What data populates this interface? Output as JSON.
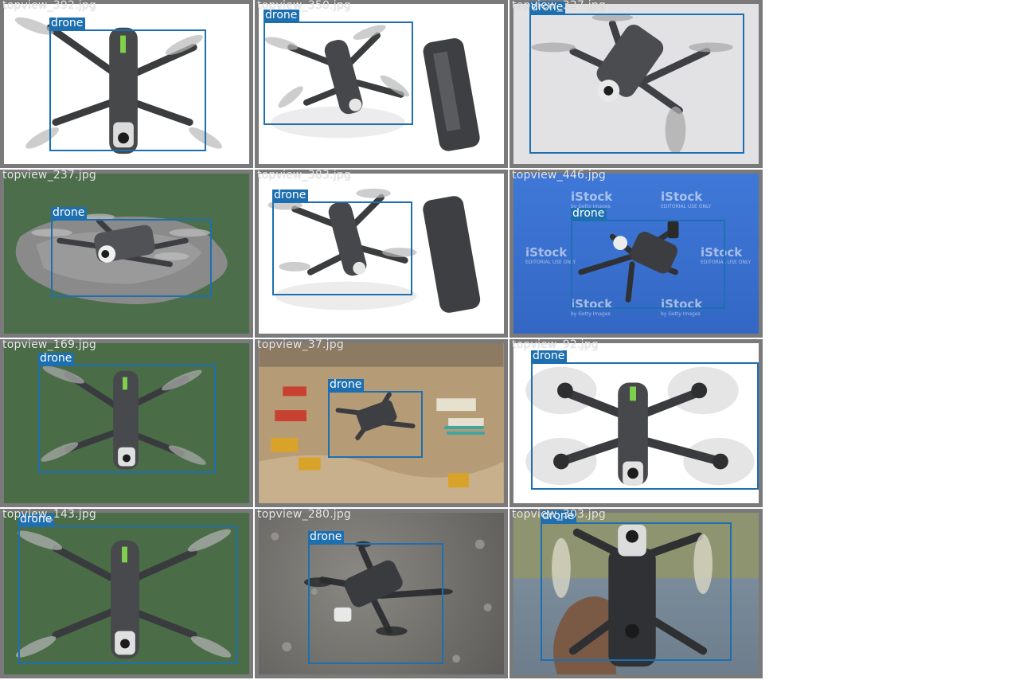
{
  "colors": {
    "box": "#1d6fb0",
    "tile_border": "#7a7a7a",
    "filename": "#e8e8e8"
  },
  "tiles": [
    {
      "file": "topview_392.jpg",
      "label": "drone",
      "bg": "#ffffff"
    },
    {
      "file": "topview_350.jpg",
      "label": "drone",
      "bg": "#ffffff"
    },
    {
      "file": "topview_327.jpg",
      "label": "drone",
      "bg": "#e2e2e4"
    },
    {
      "file": "topview_237.jpg",
      "label": "drone",
      "bg": "#4c6e4a"
    },
    {
      "file": "topview_383.jpg",
      "label": "drone",
      "bg": "#ffffff"
    },
    {
      "file": "topview_446.jpg",
      "label": "drone",
      "bg": "#3c74d4"
    },
    {
      "file": "topview_169.jpg",
      "label": "drone",
      "bg": "#4a6d48"
    },
    {
      "file": "topview_37.jpg",
      "label": "drone",
      "bg": "#b49a78"
    },
    {
      "file": "topview_92.jpg",
      "label": "drone",
      "bg": "#ffffff"
    },
    {
      "file": "topview_143.jpg",
      "label": "drone",
      "bg": "#4a6d48"
    },
    {
      "file": "topview_280.jpg",
      "label": "drone",
      "bg": "#6f6f6c"
    },
    {
      "file": "topview_303.jpg",
      "label": "drone",
      "bg": "#8b8f72"
    }
  ],
  "watermark": {
    "brand": "iStock",
    "sub": "by Getty Images",
    "note": "EDITORIAL USE ONLY"
  }
}
